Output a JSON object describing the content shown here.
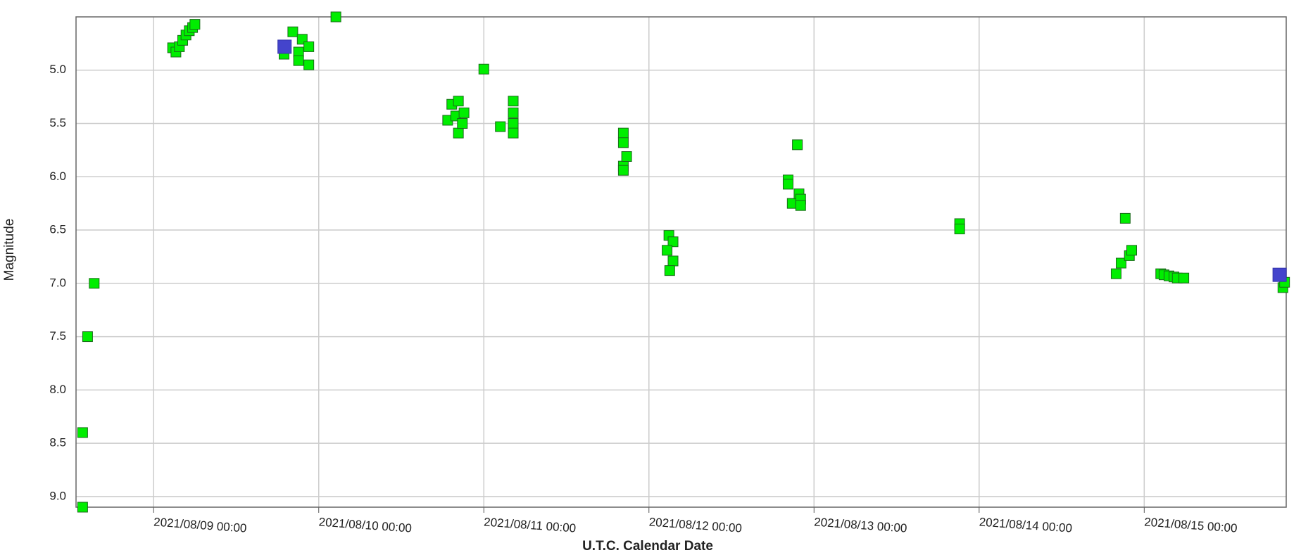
{
  "chart_data": {
    "type": "scatter",
    "x_label": "U.T.C. Calendar Date",
    "y_label": "Magnitude",
    "xlim": [
      8.53,
      15.86
    ],
    "ylim": [
      4.5,
      9.1
    ],
    "y_inverted": true,
    "grid": true,
    "xticks": [
      {
        "value": 9,
        "label": "2021/08/09 00:00"
      },
      {
        "value": 10,
        "label": "2021/08/10 00:00"
      },
      {
        "value": 11,
        "label": "2021/08/11 00:00"
      },
      {
        "value": 12,
        "label": "2021/08/12 00:00"
      },
      {
        "value": 13,
        "label": "2021/08/13 00:00"
      },
      {
        "value": 14,
        "label": "2021/08/14 00:00"
      },
      {
        "value": 15,
        "label": "2021/08/15 00:00"
      }
    ],
    "yticks": [
      {
        "value": 5,
        "label": "5.0"
      },
      {
        "value": 5.5,
        "label": "5.5"
      },
      {
        "value": 6,
        "label": "6.0"
      },
      {
        "value": 6.5,
        "label": "6.5"
      },
      {
        "value": 7,
        "label": "7.0"
      },
      {
        "value": 7.5,
        "label": "7.5"
      },
      {
        "value": 8,
        "label": "8.0"
      },
      {
        "value": 8.5,
        "label": "8.5"
      },
      {
        "value": 9,
        "label": "9.0"
      }
    ],
    "series": [
      {
        "color": "#00ee00",
        "x": [
          8.57,
          8.57,
          8.6,
          8.64,
          9.115,
          9.135,
          9.156,
          9.176,
          9.196,
          9.216,
          9.236,
          9.25,
          9.79,
          9.843,
          9.878,
          9.9,
          9.94,
          9.94,
          9.878,
          10.104,
          10.781,
          10.806,
          10.846,
          10.83,
          10.846,
          10.88,
          10.87,
          11.0,
          11.1,
          11.178,
          11.178,
          11.178,
          11.178,
          11.845,
          11.845,
          11.845,
          11.845,
          11.865,
          12.121,
          12.146,
          12.11,
          12.146,
          12.126,
          12.843,
          12.843,
          12.899,
          12.868,
          12.909,
          12.919,
          12.919,
          13.882,
          13.882,
          14.83,
          14.86,
          14.885,
          14.91,
          14.924,
          15.1,
          15.12,
          15.15,
          15.18,
          15.2,
          15.24,
          15.84,
          15.85
        ],
        "values": [
          9.1,
          8.4,
          7.5,
          7.0,
          4.79,
          4.83,
          4.78,
          4.72,
          4.67,
          4.63,
          4.6,
          4.57,
          4.85,
          4.64,
          4.83,
          4.71,
          4.78,
          4.95,
          4.91,
          4.5,
          5.47,
          5.32,
          5.29,
          5.43,
          5.59,
          5.4,
          5.5,
          4.99,
          5.53,
          5.29,
          5.4,
          5.5,
          5.59,
          5.59,
          5.68,
          5.9,
          5.94,
          5.81,
          6.55,
          6.61,
          6.69,
          6.79,
          6.88,
          6.03,
          6.07,
          5.7,
          6.25,
          6.16,
          6.21,
          6.27,
          6.44,
          6.49,
          6.91,
          6.81,
          6.39,
          6.74,
          6.69,
          6.91,
          6.92,
          6.93,
          6.94,
          6.95,
          6.95,
          7.04,
          6.99
        ]
      },
      {
        "color": "#4444cc",
        "x": [
          9.793,
          15.82
        ],
        "values": [
          4.78,
          6.92
        ]
      }
    ]
  }
}
